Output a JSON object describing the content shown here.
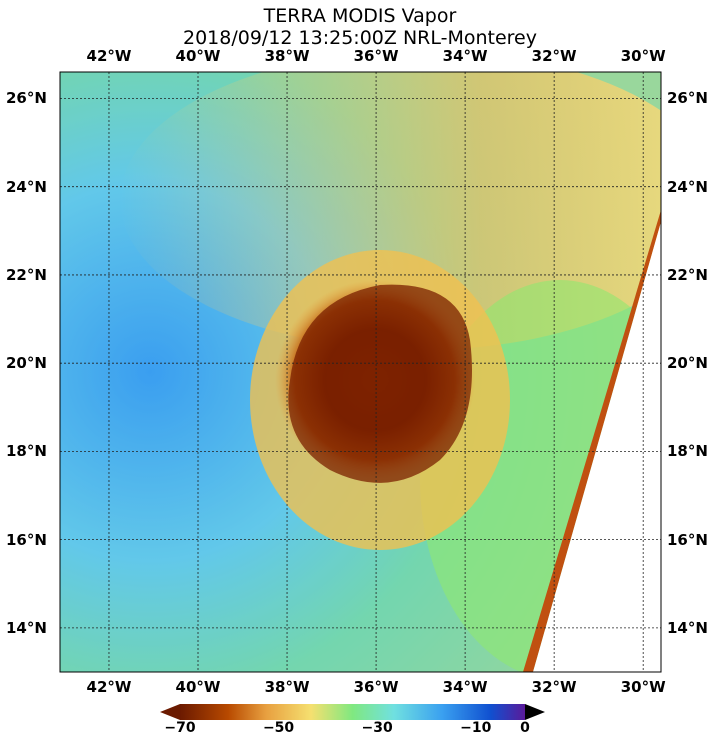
{
  "title": {
    "line1": "TERRA MODIS Vapor",
    "line2": "2018/09/12 13:25:00Z NRL-Monterey"
  },
  "map": {
    "lon_range": [
      -43.1,
      -29.6
    ],
    "lat_range": [
      13.0,
      26.6
    ],
    "lon_ticks": [
      {
        "value": -42,
        "label": "42°W"
      },
      {
        "value": -40,
        "label": "40°W"
      },
      {
        "value": -38,
        "label": "38°W"
      },
      {
        "value": -36,
        "label": "36°W"
      },
      {
        "value": -34,
        "label": "34°W"
      },
      {
        "value": -32,
        "label": "32°W"
      },
      {
        "value": -30,
        "label": "30°W"
      }
    ],
    "lat_ticks": [
      {
        "value": 14,
        "label": "14°N"
      },
      {
        "value": 16,
        "label": "16°N"
      },
      {
        "value": 18,
        "label": "18°N"
      },
      {
        "value": 20,
        "label": "20°N"
      },
      {
        "value": 22,
        "label": "22°N"
      },
      {
        "value": 24,
        "label": "24°N"
      },
      {
        "value": 26,
        "label": "26°N"
      }
    ],
    "gridlines": true,
    "storm_center": {
      "lon": -35.5,
      "lat": 20.0
    }
  },
  "colorbar": {
    "ticks": [
      {
        "value": -70,
        "label": "−70"
      },
      {
        "value": -50,
        "label": "−50"
      },
      {
        "value": -30,
        "label": "−30"
      },
      {
        "value": -10,
        "label": "−10"
      },
      {
        "value": 0,
        "label": "0"
      }
    ],
    "range": [
      -70,
      0
    ],
    "colors": [
      "#6b1a00",
      "#b84a00",
      "#e8a040",
      "#f5e070",
      "#80e880",
      "#70e0e0",
      "#3aa0f0",
      "#1050d0",
      "#5a1a9a"
    ]
  }
}
